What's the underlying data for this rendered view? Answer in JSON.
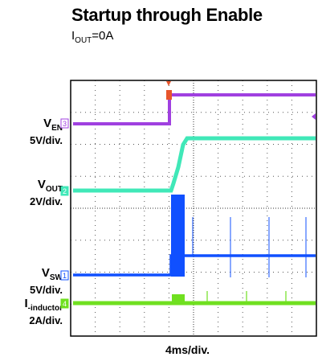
{
  "title": "Startup through Enable",
  "subtitle": {
    "main": "I",
    "sub": "OUT",
    "rest": "=0A"
  },
  "xlabel": "4ms/div.",
  "chart_data": {
    "type": "line",
    "title": "Startup through Enable",
    "subtitle": "IOUT=0A",
    "xlabel": "4ms/div.",
    "time_per_div_ms": 4,
    "divisions_x": 10,
    "divisions_y": 8,
    "grid": true,
    "trigger_marker_color": "#e8552b",
    "series": [
      {
        "name": "VEN",
        "channel": "3",
        "scale": "5V/div.",
        "color": "#a040e0",
        "label": {
          "main": "V",
          "sub": "EN",
          "scale": "5V/div."
        }
      },
      {
        "name": "VOUT",
        "channel": "2",
        "scale": "2V/div.",
        "color": "#40e8b8",
        "label": {
          "main": "V",
          "sub": "OUT",
          "scale": "2V/div."
        }
      },
      {
        "name": "VSW",
        "channel": "1",
        "scale": "5V/div.",
        "color": "#1050ff",
        "label": {
          "main": "V",
          "sub": "SW",
          "scale": "5V/div."
        }
      },
      {
        "name": "I-inductor",
        "channel": "4",
        "scale": "2A/div.",
        "color": "#70e020",
        "label": {
          "main": "I",
          "sub": "-inductor",
          "scale": "2A/div."
        }
      }
    ]
  }
}
